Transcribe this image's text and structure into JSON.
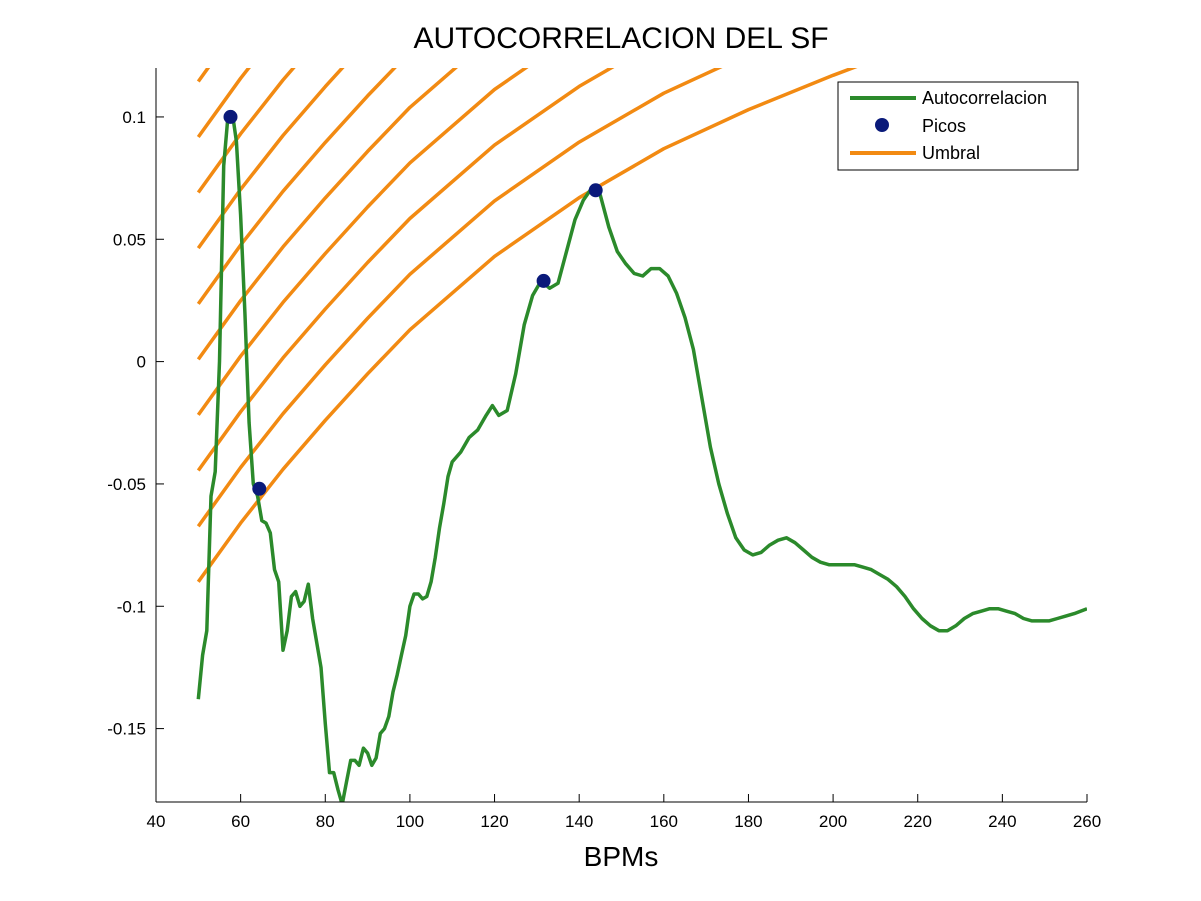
{
  "chart_data": {
    "type": "line",
    "title": "AUTOCORRELACION DEL SF",
    "xlabel": "BPMs",
    "ylabel": "",
    "xlim": [
      40,
      260
    ],
    "ylim": [
      -0.18,
      0.12
    ],
    "xticks": [
      40,
      60,
      80,
      100,
      120,
      140,
      160,
      180,
      200,
      220,
      240,
      260
    ],
    "xtick_labels": [
      "40",
      "60",
      "80",
      "100",
      "120",
      "140",
      "160",
      "180",
      "200",
      "220",
      "240",
      "260"
    ],
    "yticks": [
      0.1,
      0.05,
      0,
      -0.05,
      -0.1,
      -0.15
    ],
    "ytick_labels": [
      "0.1",
      "0.05",
      "0",
      "-0.05",
      "-0.1",
      "-0.15"
    ],
    "grid": false,
    "legend_position": "top-right",
    "legend": [
      {
        "label": "Autocorrelacion",
        "kind": "line",
        "color": "#2b8a2b"
      },
      {
        "label": "Picos",
        "kind": "marker",
        "color": "#0a1a7a"
      },
      {
        "label": "Umbral",
        "kind": "line",
        "color": "#f28a12"
      }
    ],
    "series": [
      {
        "name": "Autocorrelacion",
        "color": "#2b8a2b",
        "x": [
          50,
          51,
          52,
          53,
          54,
          55,
          56,
          57,
          58,
          59,
          60,
          61,
          62,
          63,
          64,
          65,
          66,
          67,
          68,
          69,
          70,
          71,
          72,
          73,
          74,
          75,
          76,
          77,
          78,
          79,
          80,
          81,
          82,
          83,
          84,
          85,
          86,
          87,
          88,
          89,
          90,
          91,
          92,
          93,
          94,
          95,
          96,
          97,
          98,
          99,
          100,
          101,
          102,
          103,
          104,
          105,
          106,
          107,
          108,
          109,
          110,
          112,
          114,
          116,
          118,
          119.5,
          121,
          123,
          125,
          127,
          129,
          131,
          133,
          135,
          137,
          139,
          141,
          143,
          144,
          145,
          147,
          149,
          151,
          153,
          155,
          157,
          159,
          161,
          163,
          165,
          167,
          169,
          171,
          173,
          175,
          177,
          179,
          181,
          183,
          185,
          187,
          189,
          191,
          193,
          195,
          197,
          199,
          201,
          203,
          205,
          207,
          209,
          211,
          213,
          215,
          217,
          219,
          221,
          223,
          225,
          227,
          229,
          231,
          233,
          235,
          237,
          239,
          241,
          243,
          245,
          247,
          249,
          251,
          253,
          255,
          257,
          260
        ],
        "y": [
          -0.138,
          -0.12,
          -0.11,
          -0.055,
          -0.045,
          0.0,
          0.08,
          0.1,
          0.102,
          0.09,
          0.06,
          0.02,
          -0.025,
          -0.05,
          -0.055,
          -0.065,
          -0.066,
          -0.07,
          -0.085,
          -0.09,
          -0.118,
          -0.11,
          -0.096,
          -0.094,
          -0.1,
          -0.098,
          -0.091,
          -0.105,
          -0.115,
          -0.125,
          -0.148,
          -0.168,
          -0.168,
          -0.175,
          -0.181,
          -0.172,
          -0.163,
          -0.163,
          -0.165,
          -0.158,
          -0.16,
          -0.165,
          -0.162,
          -0.152,
          -0.15,
          -0.145,
          -0.135,
          -0.128,
          -0.12,
          -0.112,
          -0.1,
          -0.095,
          -0.095,
          -0.097,
          -0.096,
          -0.09,
          -0.08,
          -0.068,
          -0.058,
          -0.047,
          -0.041,
          -0.037,
          -0.031,
          -0.028,
          -0.022,
          -0.018,
          -0.022,
          -0.02,
          -0.005,
          0.015,
          0.027,
          0.033,
          0.03,
          0.032,
          0.045,
          0.058,
          0.066,
          0.071,
          0.071,
          0.068,
          0.055,
          0.045,
          0.04,
          0.036,
          0.035,
          0.038,
          0.038,
          0.035,
          0.028,
          0.018,
          0.005,
          -0.015,
          -0.035,
          -0.05,
          -0.062,
          -0.072,
          -0.077,
          -0.079,
          -0.078,
          -0.075,
          -0.073,
          -0.072,
          -0.074,
          -0.077,
          -0.08,
          -0.082,
          -0.083,
          -0.083,
          -0.083,
          -0.083,
          -0.084,
          -0.085,
          -0.087,
          -0.089,
          -0.092,
          -0.096,
          -0.101,
          -0.105,
          -0.108,
          -0.11,
          -0.11,
          -0.108,
          -0.105,
          -0.103,
          -0.102,
          -0.101,
          -0.101,
          -0.102,
          -0.103,
          -0.105,
          -0.106,
          -0.106,
          -0.106,
          -0.105,
          -0.104,
          -0.103,
          -0.101
        ]
      },
      {
        "name": "Picos",
        "color": "#0a1a7a",
        "x": [
          57.6,
          64.4,
          131.6,
          143.9
        ],
        "y": [
          0.1,
          -0.052,
          0.033,
          0.07
        ]
      },
      {
        "name": "Umbral",
        "color": "#f28a12",
        "description_curves": "family of offset threshold curves",
        "x": [
          50,
          60,
          70,
          80,
          90,
          100,
          120,
          140,
          160,
          180,
          200,
          220,
          240,
          260
        ],
        "base": [
          -0.09,
          -0.066,
          -0.044,
          -0.024,
          -0.005,
          0.013,
          0.043,
          0.067,
          0.087,
          0.103,
          0.117,
          0.13,
          0.142,
          0.152
        ],
        "offsets": [
          0.0,
          0.0227,
          0.0455,
          0.0682,
          0.0909,
          0.1136,
          0.1364,
          0.1591,
          0.1818,
          0.2045
        ]
      }
    ]
  }
}
